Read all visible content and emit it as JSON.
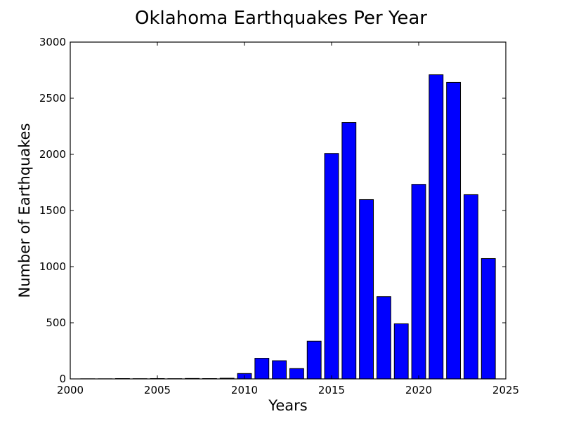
{
  "chart_data": {
    "type": "bar",
    "title": "Oklahoma Earthquakes Per Year",
    "xlabel": "Years",
    "ylabel": "Number of Earthquakes",
    "xlim": [
      2000,
      2025
    ],
    "ylim": [
      0,
      3000
    ],
    "x_ticks": [
      "2000",
      "2005",
      "2010",
      "2015",
      "2020",
      "2025"
    ],
    "y_ticks": [
      "0",
      "500",
      "1000",
      "1500",
      "2000",
      "2500",
      "3000"
    ],
    "grid": false,
    "bar_color": "#0000ff",
    "bar_edge_color": "#000000",
    "x": [
      2000,
      2001,
      2002,
      2003,
      2004,
      2005,
      2006,
      2007,
      2008,
      2009,
      2010,
      2011,
      2012,
      2013,
      2014,
      2015,
      2016,
      2017,
      2018,
      2019,
      2020,
      2021,
      2022,
      2023
    ],
    "values": [
      1,
      1,
      3,
      2,
      3,
      2,
      4,
      3,
      6,
      48,
      184,
      162,
      92,
      336,
      2008,
      2284,
      1597,
      733,
      491,
      1733,
      2709,
      2641,
      1641,
      1072
    ]
  }
}
